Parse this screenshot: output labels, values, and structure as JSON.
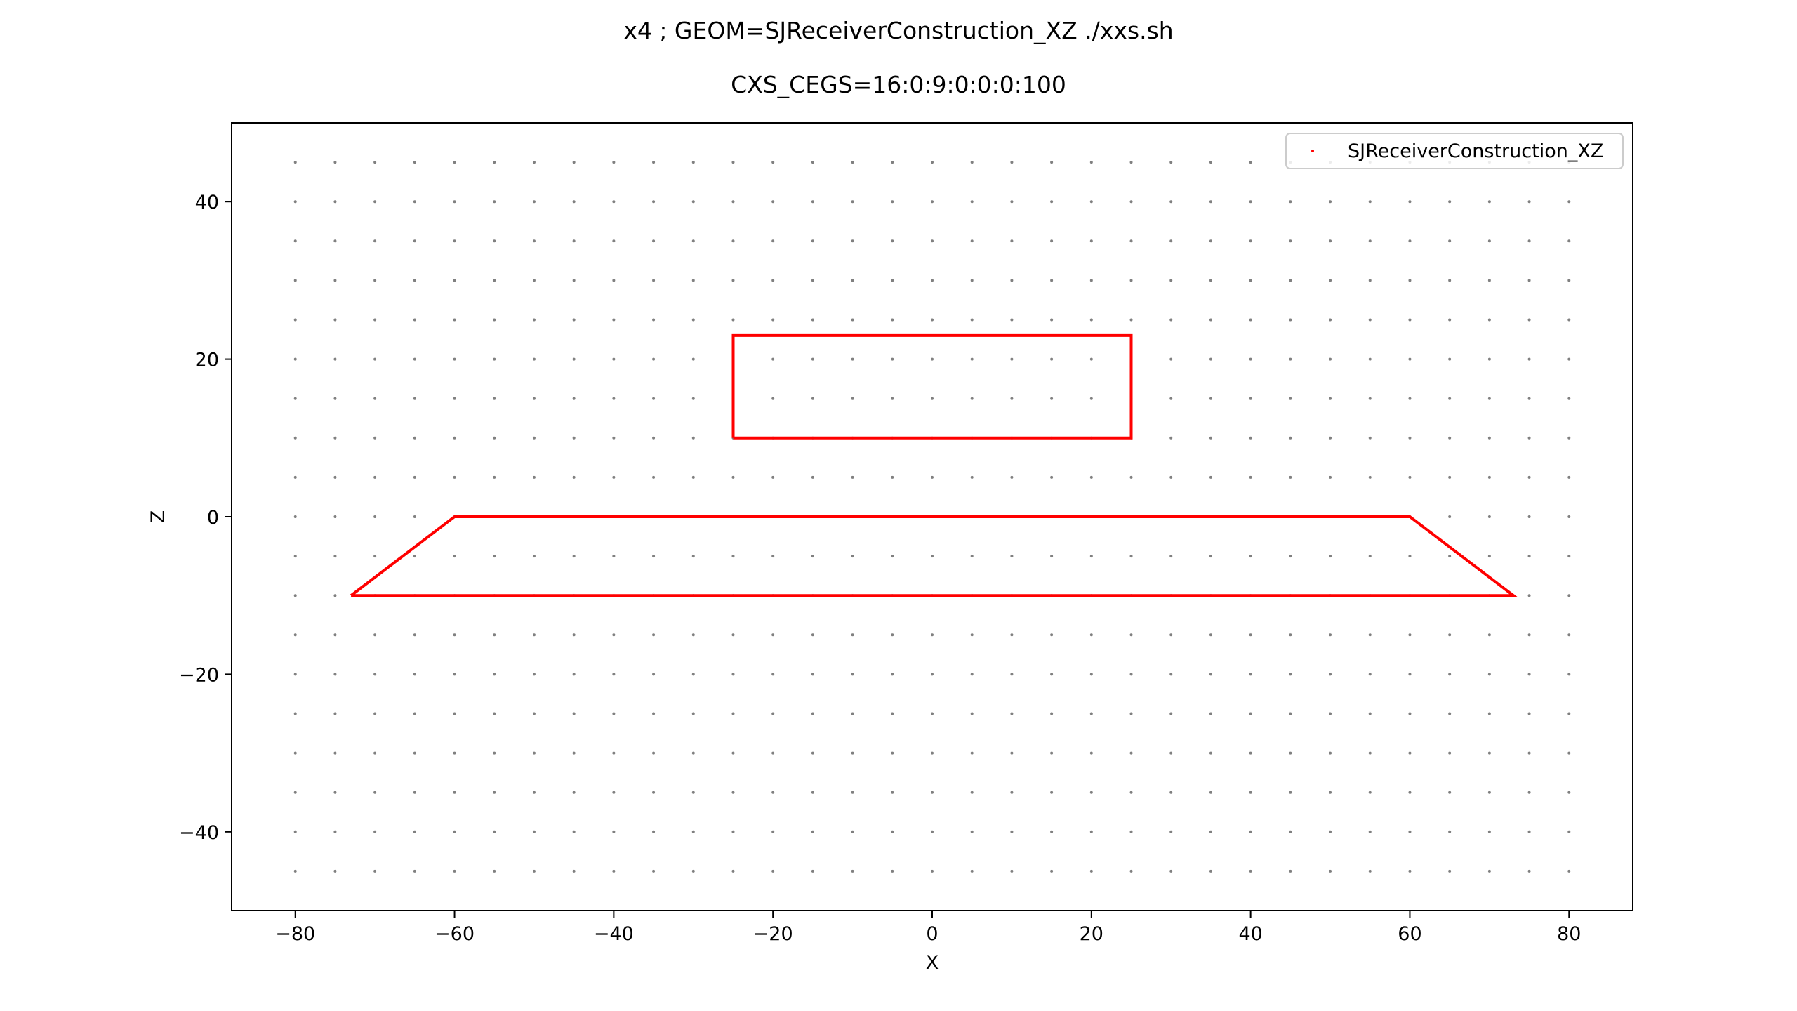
{
  "chart_data": {
    "type": "scatter",
    "title": "x4 ; GEOM=SJReceiverConstruction_XZ ./xxs.sh",
    "subtitle": "CXS_CEGS=16:0:9:0:0:0:100",
    "xlabel": "X",
    "ylabel": "Z",
    "xlim": [
      -88,
      88
    ],
    "ylim": [
      -50,
      50
    ],
    "xticks": [
      -80,
      -60,
      -40,
      -20,
      0,
      20,
      40,
      60,
      80
    ],
    "yticks": [
      -40,
      -20,
      0,
      20,
      40
    ],
    "grid": false,
    "legend_position": "top-right",
    "colors": {
      "intersection": "#ff0000",
      "gensteps": "#808080"
    },
    "gensteps": {
      "x_range": [
        -80,
        80
      ],
      "z_range": [
        -45,
        45
      ],
      "step": 5
    },
    "series": [
      {
        "name": "SJReceiverConstruction_XZ",
        "color": "#ff0000",
        "outlines": [
          {
            "x": [
              -25,
              25,
              25,
              -25,
              -25
            ],
            "z": [
              10,
              10,
              23,
              23,
              10
            ]
          },
          {
            "x": [
              -73,
              -60,
              -35,
              35,
              60,
              73,
              -73
            ],
            "z": [
              -10,
              0,
              0,
              0,
              0,
              -10,
              -10
            ]
          }
        ]
      }
    ]
  }
}
